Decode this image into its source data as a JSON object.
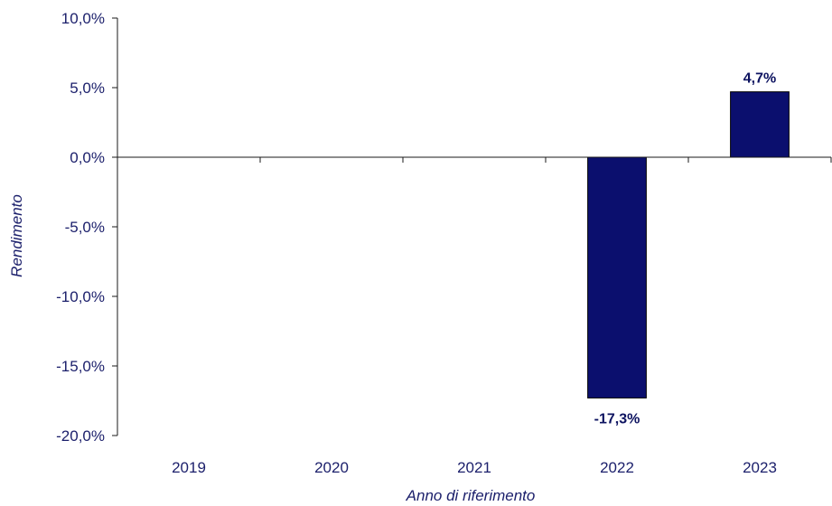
{
  "chart_data": {
    "type": "bar",
    "title": "",
    "xlabel": "Anno di riferimento",
    "ylabel": "Rendimento",
    "categories": [
      "2019",
      "2020",
      "2021",
      "2022",
      "2023"
    ],
    "values": [
      null,
      null,
      null,
      -17.3,
      4.7
    ],
    "data_labels": [
      "",
      "",
      "",
      "-17,3%",
      "4,7%"
    ],
    "ylim": [
      -20,
      10
    ],
    "yticks": [
      10,
      5,
      0,
      -5,
      -10,
      -15,
      -20
    ],
    "ytick_labels": [
      "10,0%",
      "5,0%",
      "0,0%",
      "-5,0%",
      "-10,0%",
      "-15,0%",
      "-20,0%"
    ],
    "grid": false,
    "legend": "none",
    "colors": {
      "bar": "#0b0f6e",
      "axis": "#1a1a1a",
      "text": "#1b1f6b"
    }
  }
}
